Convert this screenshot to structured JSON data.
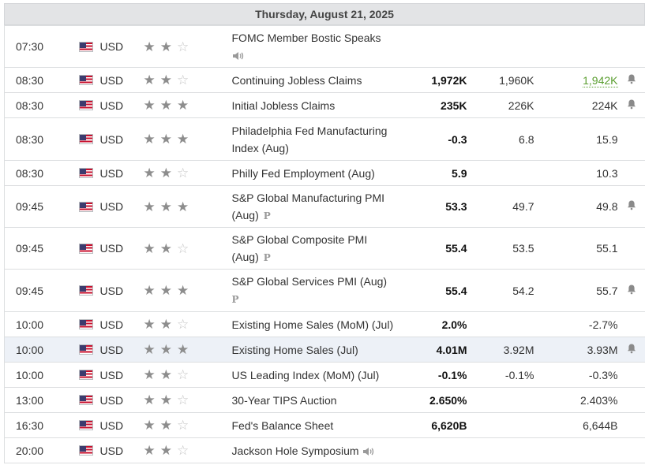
{
  "calendar": {
    "date_header": "Thursday, August 21, 2025",
    "colors": {
      "positive": "#5a9e2f",
      "negative": "#d73a2a",
      "star_on": "#8d8d8d",
      "star_off": "#c6c6c6"
    },
    "rows": [
      {
        "time": "07:30",
        "currency": "USD",
        "importance": 2,
        "event": "FOMC Member Bostic Speaks",
        "event_suffix": "",
        "actual": "",
        "forecast": "",
        "previous": "",
        "speech": true,
        "prelim": false,
        "alert": false
      },
      {
        "time": "08:30",
        "currency": "USD",
        "importance": 2,
        "event": "Continuing Jobless Claims",
        "event_suffix": "",
        "actual": "1,972K",
        "forecast": "1,960K",
        "previous": "1,942K",
        "speech": false,
        "prelim": false,
        "alert": true
      },
      {
        "time": "08:30",
        "currency": "USD",
        "importance": 3,
        "event": "Initial Jobless Claims",
        "event_suffix": "",
        "actual": "235K",
        "forecast": "226K",
        "previous": "224K",
        "speech": false,
        "prelim": false,
        "alert": true
      },
      {
        "time": "08:30",
        "currency": "USD",
        "importance": 3,
        "event": "Philadelphia Fed Manufacturing",
        "event_suffix": "Index (Aug)",
        "actual": "-0.3",
        "forecast": "6.8",
        "previous": "15.9",
        "speech": false,
        "prelim": false,
        "alert": false
      },
      {
        "time": "08:30",
        "currency": "USD",
        "importance": 2,
        "event": "Philly Fed Employment (Aug)",
        "event_suffix": "",
        "actual": "5.9",
        "forecast": "",
        "previous": "10.3",
        "speech": false,
        "prelim": false,
        "alert": false
      },
      {
        "time": "09:45",
        "currency": "USD",
        "importance": 3,
        "event": "S&P Global Manufacturing PMI",
        "event_suffix": "(Aug)",
        "actual": "53.3",
        "forecast": "49.7",
        "previous": "49.8",
        "speech": false,
        "prelim": true,
        "alert": true
      },
      {
        "time": "09:45",
        "currency": "USD",
        "importance": 2,
        "event": "S&P Global Composite PMI",
        "event_suffix": "(Aug)",
        "actual": "55.4",
        "forecast": "53.5",
        "previous": "55.1",
        "speech": false,
        "prelim": true,
        "alert": false
      },
      {
        "time": "09:45",
        "currency": "USD",
        "importance": 3,
        "event": "S&P Global Services PMI (Aug)",
        "event_suffix": "",
        "actual": "55.4",
        "forecast": "54.2",
        "previous": "55.7",
        "speech": false,
        "prelim": true,
        "alert": true
      },
      {
        "time": "10:00",
        "currency": "USD",
        "importance": 2,
        "event": "Existing Home Sales (MoM) (Jul)",
        "event_suffix": "",
        "actual": "2.0%",
        "forecast": "",
        "previous": "-2.7%",
        "speech": false,
        "prelim": false,
        "alert": false
      },
      {
        "time": "10:00",
        "currency": "USD",
        "importance": 3,
        "event": "Existing Home Sales (Jul)",
        "event_suffix": "",
        "actual": "4.01M",
        "forecast": "3.92M",
        "previous": "3.93M",
        "speech": false,
        "prelim": false,
        "alert": true
      },
      {
        "time": "10:00",
        "currency": "USD",
        "importance": 2,
        "event": "US Leading Index (MoM) (Jul)",
        "event_suffix": "",
        "actual": "-0.1%",
        "forecast": "-0.1%",
        "previous": "-0.3%",
        "speech": false,
        "prelim": false,
        "alert": false
      },
      {
        "time": "13:00",
        "currency": "USD",
        "importance": 2,
        "event": "30-Year TIPS Auction",
        "event_suffix": "",
        "actual": "2.650%",
        "forecast": "",
        "previous": "2.403%",
        "speech": false,
        "prelim": false,
        "alert": false
      },
      {
        "time": "16:30",
        "currency": "USD",
        "importance": 2,
        "event": "Fed's Balance Sheet",
        "event_suffix": "",
        "actual": "6,620B",
        "forecast": "",
        "previous": "6,644B",
        "speech": false,
        "prelim": false,
        "alert": false
      },
      {
        "time": "20:00",
        "currency": "USD",
        "importance": 2,
        "event": "Jackson Hole Symposium",
        "event_suffix": "",
        "actual": "",
        "forecast": "",
        "previous": "",
        "speech": true,
        "prelim": false,
        "alert": false
      }
    ],
    "prelim_glyph": "P",
    "icons": {
      "flag": "us-flag-icon",
      "speech": "speaker-icon",
      "alert": "bell-icon",
      "star": "star-icon"
    }
  }
}
